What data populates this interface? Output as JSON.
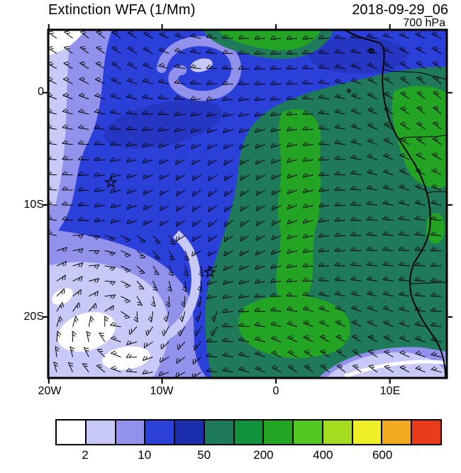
{
  "header": {
    "title": "Extinction WFA (1/Mm)",
    "datetime": "2018-09-29_06",
    "level": "700 hPa"
  },
  "axes": {
    "lat_labels": [
      "0",
      "10S",
      "20S"
    ],
    "lon_labels": [
      "20W",
      "10W",
      "0",
      "10E"
    ]
  },
  "colorbar": {
    "colors": [
      "#ffffff",
      "#c9c9f7",
      "#9292ec",
      "#2b3fd9",
      "#1b2fae",
      "#1e7a5a",
      "#12913d",
      "#23a523",
      "#52c621",
      "#a5dc1f",
      "#f0ee28",
      "#f2a91f",
      "#e93a1c"
    ],
    "tick_labels": [
      "2",
      "10",
      "50",
      "200",
      "400",
      "600"
    ]
  },
  "chart_data": {
    "type": "heatmap",
    "title": "Extinction WFA (1/Mm)",
    "valid_time": "2018-09-29_06",
    "pressure_level": "700 hPa",
    "units": "1/Mm",
    "lon_range": [
      -20,
      15
    ],
    "lat_range": [
      -25.4,
      5.6
    ],
    "lon_ticks": [
      "20W",
      "10W",
      "0",
      "10E"
    ],
    "lat_ticks": [
      "0",
      "10S",
      "20S"
    ],
    "colorbar_levels": [
      2,
      5,
      10,
      20,
      50,
      100,
      200,
      300,
      400,
      500,
      600,
      700
    ],
    "colorbar_labeled_levels": [
      2,
      10,
      50,
      200,
      400,
      600
    ],
    "legend_position": "bottom",
    "grid": false,
    "overlays": [
      "700 hPa wind barbs",
      "African coastline and borders",
      "two star station markers"
    ],
    "markers": [
      {
        "symbol": "star",
        "lon": -14.5,
        "lat": -8
      },
      {
        "symbol": "star",
        "lon": -5.8,
        "lat": -16
      }
    ],
    "field_summary": "Moderate extinction (20-100 1/Mm, blue) covers most of the tropical Atlantic; elevated extinction (100-400 1/Mm, teal to green) over central/southern Africa and offshore biomass-burning outflow; low extinction (<10 1/Mm, lavender to white) in the southwest subtropical Atlantic within a cyclonic eddy, and in a small swirl near 12W/2S; 700 hPa wind barbs show predominantly easterly flow with a closed circulation near 17W/20S."
  }
}
